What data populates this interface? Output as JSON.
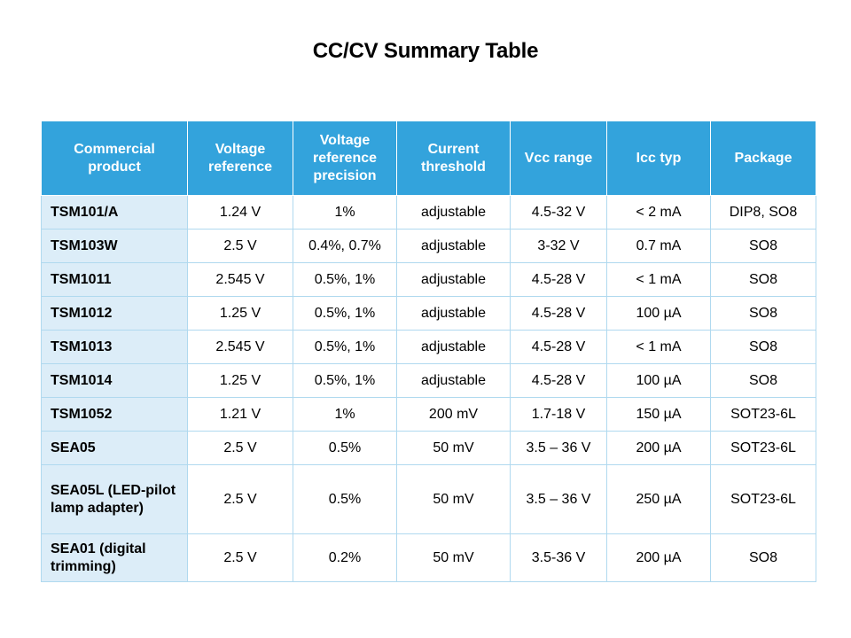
{
  "title": "CC/CV Summary Table",
  "table": {
    "headers": [
      "Commercial product",
      "Voltage reference",
      "Voltage reference precision",
      "Current threshold",
      "Vcc range",
      "Icc typ",
      "Package"
    ],
    "rows": [
      [
        "TSM101/A",
        "1.24 V",
        "1%",
        "adjustable",
        "4.5-32 V",
        "< 2 mA",
        "DIP8, SO8"
      ],
      [
        "TSM103W",
        "2.5 V",
        "0.4%, 0.7%",
        "adjustable",
        "3-32 V",
        "0.7 mA",
        "SO8"
      ],
      [
        "TSM1011",
        "2.545 V",
        "0.5%, 1%",
        "adjustable",
        "4.5-28 V",
        "< 1 mA",
        "SO8"
      ],
      [
        "TSM1012",
        "1.25 V",
        "0.5%, 1%",
        "adjustable",
        "4.5-28 V",
        "100 µA",
        "SO8"
      ],
      [
        "TSM1013",
        "2.545 V",
        "0.5%, 1%",
        "adjustable",
        "4.5-28 V",
        "< 1 mA",
        "SO8"
      ],
      [
        "TSM1014",
        "1.25 V",
        "0.5%, 1%",
        "adjustable",
        "4.5-28 V",
        "100 µA",
        "SO8"
      ],
      [
        "TSM1052",
        "1.21 V",
        "1%",
        "200 mV",
        "1.7-18 V",
        "150 µA",
        "SOT23-6L"
      ],
      [
        "SEA05",
        "2.5 V",
        "0.5%",
        "50 mV",
        "3.5 – 36 V",
        "200 µA",
        "SOT23-6L"
      ],
      [
        "SEA05L (LED-pilot lamp adapter)",
        "2.5 V",
        "0.5%",
        "50 mV",
        "3.5 – 36 V",
        "250 µA",
        "SOT23-6L"
      ],
      [
        "SEA01 (digital trimming)",
        "2.5 V",
        "0.2%",
        "50 mV",
        "3.5-36 V",
        "200 µA",
        "SO8"
      ]
    ]
  },
  "colors": {
    "header_bg": "#33a3dc",
    "header_text": "#ffffff",
    "product_col_bg": "#dcedf8",
    "grid_line": "#b0d9ef"
  }
}
